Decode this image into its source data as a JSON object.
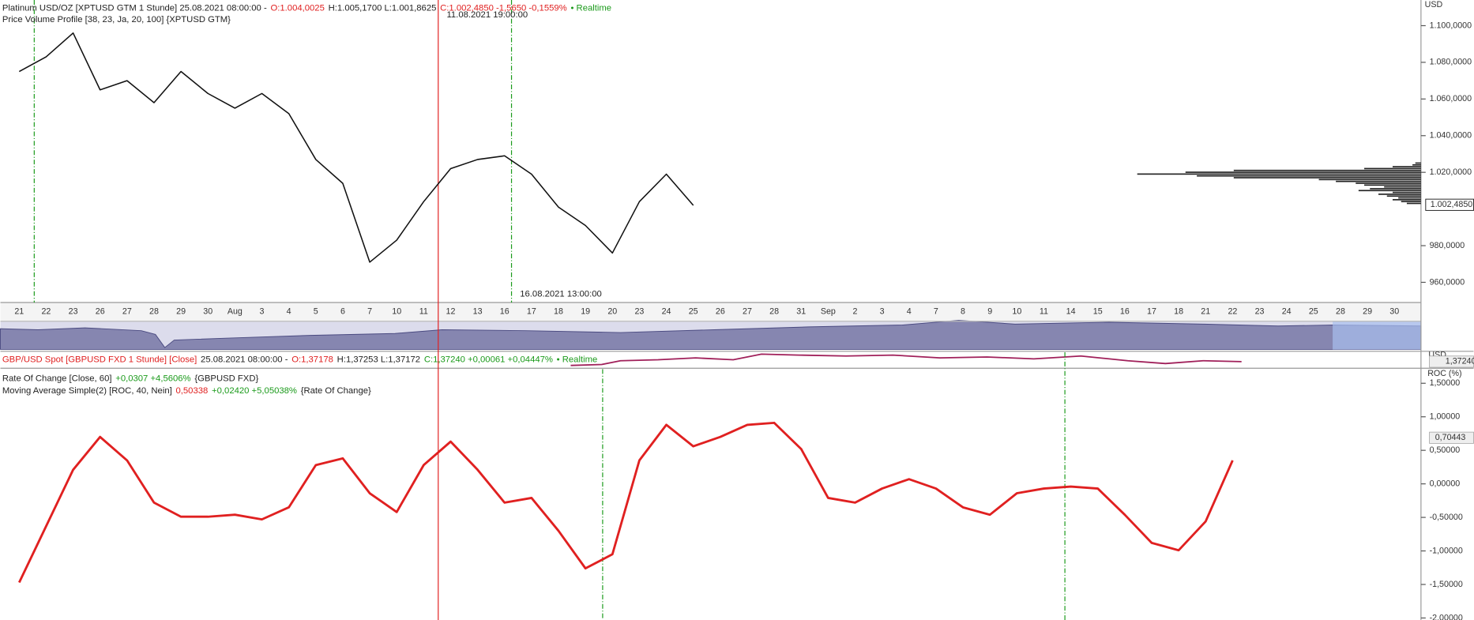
{
  "chart_data": [
    {
      "type": "line",
      "legend": [
        [
          {
            "text": "Platinum USD/OZ [XPTUSD GTM 1 Stunde] 25.08.2021 08:00:00 -",
            "color": "#222222"
          },
          {
            "text": "O:1.004,0025",
            "color": "#e02020"
          },
          {
            "text": "H:1.005,1700 L:1.001,8625",
            "color": "#222222"
          },
          {
            "text": "C:1.002,4850 -1,5650 -0,1559%",
            "color": "#e02020"
          },
          {
            "text": "• Realtime",
            "color": "#1a9a1a"
          }
        ],
        [
          {
            "text": "Price Volume Profile [38, 23, Ja, 20, 100] {XPTUSD GTM}",
            "color": "#222222"
          }
        ]
      ],
      "categories": [
        "21",
        "22",
        "23",
        "26",
        "27",
        "28",
        "29",
        "30",
        "Aug",
        "3",
        "4",
        "5",
        "6",
        "7",
        "10",
        "11",
        "12",
        "13",
        "16",
        "17",
        "18",
        "19",
        "20",
        "23",
        "24",
        "25",
        "26",
        "27",
        "28",
        "31",
        "Sep",
        "2",
        "3",
        "4",
        "7",
        "8",
        "9",
        "10",
        "11",
        "14",
        "15",
        "16",
        "17",
        "18",
        "21",
        "22",
        "23",
        "24",
        "25",
        "28",
        "29",
        "30"
      ],
      "values": [
        1075,
        1083,
        1096,
        1065,
        1070,
        1058,
        1075,
        1063,
        1055,
        1063,
        1052,
        1027,
        1014,
        971,
        983,
        1004,
        1022,
        1027,
        1029,
        1019,
        1001,
        991,
        976,
        1004,
        1019,
        1002,
        null,
        null,
        null,
        null,
        null,
        null,
        null,
        null,
        null,
        null,
        null,
        null,
        null,
        null,
        null,
        null,
        null,
        null,
        null,
        null,
        null,
        null,
        null,
        null,
        null,
        null
      ],
      "color": "#111111",
      "ylim": [
        949,
        1114
      ],
      "yticks": [
        {
          "value": 960,
          "label": "960,0000"
        },
        {
          "value": 980,
          "label": "980,0000"
        },
        {
          "value": 1020,
          "label": "1.020,0000"
        },
        {
          "value": 1040,
          "label": "1.040,0000"
        },
        {
          "value": 1060,
          "label": "1.060,0000"
        },
        {
          "value": 1080,
          "label": "1.080,0000"
        },
        {
          "value": 1100,
          "label": "1.100,0000"
        }
      ],
      "y_unit": "USD",
      "last_value_label": "1.002,4850",
      "markers": [
        {
          "label": "11.08.2021 19:00:00",
          "color": "#e02020"
        },
        {
          "label": "16.08.2021 13:00:00",
          "color": "#1a9a1a"
        }
      ]
    },
    {
      "type": "hbar",
      "y": [
        1025,
        1024,
        1023,
        1022,
        1021,
        1020,
        1019,
        1018,
        1017,
        1016,
        1015,
        1014,
        1013,
        1012,
        1011,
        1010,
        1009,
        1008,
        1007,
        1006,
        1005,
        1004,
        1003
      ],
      "values": [
        2,
        3,
        10,
        20,
        66,
        83,
        100,
        79,
        66,
        36,
        30,
        23,
        20,
        13,
        18,
        22,
        10,
        15,
        12,
        8,
        10,
        7,
        5
      ],
      "xlim": [
        0,
        100
      ],
      "color": "#222222"
    },
    {
      "type": "line",
      "header": [
        {
          "text": "GBP/USD Spot [GBPUSD FXD 1 Stunde] [Close]",
          "color": "#e02020"
        },
        {
          "text": "25.08.2021 08:00:00 -",
          "color": "#222222"
        },
        {
          "text": "O:1,37178",
          "color": "#e02020"
        },
        {
          "text": "H:1,37253 L:1,37172",
          "color": "#222222"
        },
        {
          "text": "C:1,37240 +0,00061 +0,04447%",
          "color": "#1a9a1a"
        },
        {
          "text": "• Realtime",
          "color": "#1a9a1a"
        }
      ],
      "header_unit": "USD",
      "header_last_label": "1,37240",
      "legend": [
        [
          {
            "text": "Rate Of Change [Close, 60]",
            "color": "#222222"
          },
          {
            "text": "+0,0307 +4,5606%",
            "color": "#1a9a1a"
          },
          {
            "text": "{GBPUSD FXD}",
            "color": "#222222"
          }
        ],
        [
          {
            "text": "Moving Average Simple(2) [ROC, 40, Nein]",
            "color": "#222222"
          },
          {
            "text": "0,50338",
            "color": "#e02020"
          },
          {
            "text": "+0,02420 +5,05038%",
            "color": "#1a9a1a"
          },
          {
            "text": "{Rate Of Change}",
            "color": "#222222"
          }
        ]
      ],
      "values": [
        -1.47,
        -0.63,
        0.21,
        0.7,
        0.35,
        -0.28,
        -0.49,
        -0.49,
        -0.46,
        -0.53,
        -0.35,
        0.28,
        0.38,
        -0.14,
        -0.42,
        0.28,
        0.63,
        0.21,
        -0.28,
        -0.21,
        -0.7,
        -1.26,
        -1.05,
        0.35,
        0.88,
        0.56,
        0.7,
        0.88,
        0.91,
        0.52,
        -0.21,
        -0.28,
        -0.07,
        0.07,
        -0.07,
        -0.35,
        -0.46,
        -0.14,
        -0.07,
        -0.04,
        -0.07,
        -0.46,
        -0.88,
        -0.99,
        -0.56,
        0.35,
        null,
        null,
        null,
        null,
        null,
        null
      ],
      "color": "#e02020",
      "ylim": [
        -2.03,
        1.71
      ],
      "yticks": [
        {
          "value": -2,
          "label": "-2,00000"
        },
        {
          "value": -1.5,
          "label": "-1,50000"
        },
        {
          "value": -1,
          "label": "-1,00000"
        },
        {
          "value": -0.5,
          "label": "-0,50000"
        },
        {
          "value": 0,
          "label": "0,00000"
        },
        {
          "value": 0.5,
          "label": "0,50000"
        },
        {
          "value": 1,
          "label": "1,00000"
        },
        {
          "value": 1.5,
          "label": "1,50000"
        }
      ],
      "y_unit": "ROC (%)",
      "last_value_label": "0,70443"
    }
  ]
}
